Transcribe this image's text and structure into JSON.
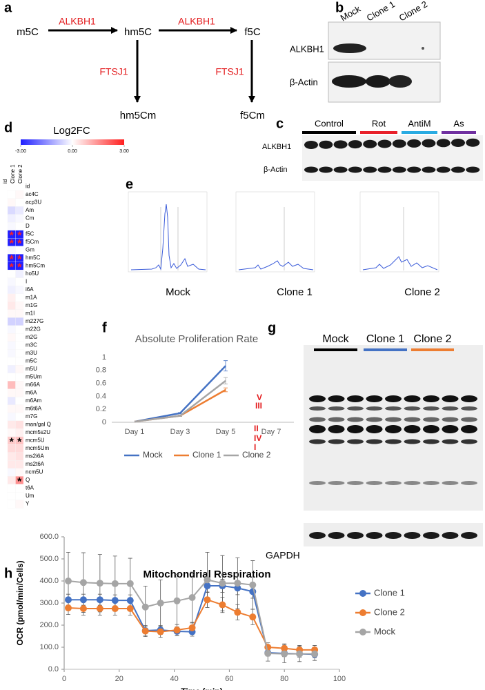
{
  "panel_labels": [
    "a",
    "b",
    "c",
    "d",
    "e",
    "f",
    "g",
    "h"
  ],
  "diagram": {
    "nodes": [
      "m5C",
      "hm5C",
      "f5C",
      "hm5Cm",
      "f5Cm"
    ],
    "edges": [
      "ALKBH1",
      "ALKBH1",
      "FTSJ1",
      "FTSJ1"
    ]
  },
  "blot_b": {
    "lanes": [
      "Mock",
      "Clone 1",
      "Clone 2"
    ],
    "rows": [
      "ALKBH1",
      "β-Actin"
    ]
  },
  "blot_c": {
    "groups": [
      {
        "name": "Control",
        "color": "#000000"
      },
      {
        "name": "Rot",
        "color": "#e8202a"
      },
      {
        "name": "AntiM",
        "color": "#29abe2"
      },
      {
        "name": "As",
        "color": "#7030a0"
      }
    ],
    "rows": [
      "ALKBH1",
      "β-Actin"
    ]
  },
  "chromatograms": {
    "labels": [
      "Mock",
      "Clone 1",
      "Clone 2"
    ]
  },
  "blot_g": {
    "groups": [
      {
        "name": "Mock",
        "color": "#000000"
      },
      {
        "name": "Clone 1",
        "color": "#4472c4"
      },
      {
        "name": "Clone 2",
        "color": "#ed7d31"
      }
    ],
    "bands": [
      "V",
      "III",
      "II",
      "IV",
      "I"
    ],
    "loading": "GAPDH"
  },
  "chart_data": [
    {
      "type": "heatmap",
      "title": "Log2FC",
      "id_header": "id",
      "categories": [
        "ac4C",
        "acp3U",
        "Am",
        "Cm",
        "D",
        "f5C",
        "f5Cm",
        "Gm",
        "hm5C",
        "hm5Cm",
        "ho5U",
        "I",
        "i6A",
        "m1A",
        "m1G",
        "m1I",
        "m227G",
        "m22G",
        "m2G",
        "m3C",
        "m3U",
        "m5C",
        "m5U",
        "m5Um",
        "m66A",
        "m6A",
        "m6Am",
        "m6t6A",
        "m7G",
        "man/gal Q",
        "mcm5s2U",
        "mcm5U",
        "mcm5Um",
        "ms2i6A",
        "ms2t6A",
        "ncm5U",
        "Q",
        "t6A",
        "Um",
        "Y"
      ],
      "series": [
        {
          "name": "Clone 1",
          "values": [
            0,
            0.1,
            -0.5,
            -0.2,
            -0.1,
            -3,
            -3,
            -0.1,
            -3,
            -3,
            0,
            -0.1,
            -0.2,
            0.2,
            0.3,
            0.1,
            -0.6,
            -0.1,
            0.1,
            -0.1,
            -0.1,
            0,
            -0.2,
            0,
            0.9,
            0.1,
            -0.3,
            0.1,
            -0.1,
            0.3,
            0.1,
            0.7,
            0.5,
            0.3,
            0.3,
            -0.1,
            0.3,
            0,
            0,
            0
          ],
          "annotations": [
            null,
            null,
            null,
            null,
            null,
            "*",
            "*",
            null,
            "*",
            "*",
            null,
            null,
            null,
            null,
            null,
            null,
            null,
            null,
            null,
            null,
            null,
            null,
            null,
            null,
            null,
            null,
            null,
            null,
            null,
            null,
            null,
            "*",
            null,
            null,
            null,
            null,
            null,
            null,
            null,
            null
          ]
        },
        {
          "name": "Clone 2",
          "values": [
            0.1,
            0,
            -0.3,
            -0.1,
            0,
            -3,
            -3,
            0,
            -3,
            -3,
            -0.2,
            0,
            -0.1,
            0,
            0.1,
            0.1,
            -0.6,
            0,
            0,
            0,
            0,
            0,
            0.1,
            0,
            0.1,
            0.1,
            0,
            0.1,
            0,
            0.4,
            0.2,
            0.8,
            0.5,
            0.4,
            0.3,
            0.1,
            1.5,
            0,
            0,
            0.1
          ],
          "annotations": [
            null,
            null,
            null,
            null,
            null,
            "*",
            "*",
            null,
            "*",
            "*",
            null,
            null,
            null,
            null,
            null,
            null,
            null,
            null,
            null,
            null,
            null,
            null,
            null,
            null,
            null,
            null,
            null,
            null,
            null,
            null,
            null,
            "*",
            null,
            null,
            null,
            null,
            "*",
            null,
            null,
            null
          ]
        }
      ],
      "colorbar": {
        "lim": [
          -3,
          3
        ],
        "ticks": [
          {
            "value": -3,
            "label": "-3.00"
          },
          {
            "value": 0,
            "label": "0.00"
          },
          {
            "value": 3,
            "label": "3.00"
          }
        ],
        "colors": [
          "#1f1fff",
          "#ffffff",
          "#ff1f1f"
        ]
      }
    },
    {
      "type": "line",
      "title": "Absolute Proliferation Rate",
      "categories": [
        "Day 1",
        "Day 3",
        "Day 5",
        "Day 7"
      ],
      "series": [
        {
          "name": "Mock",
          "color": "#4472c4",
          "values": [
            0.01,
            0.14,
            0.87,
            null
          ],
          "errors": [
            0,
            0.01,
            0.08,
            null
          ]
        },
        {
          "name": "Clone 1",
          "color": "#ed7d31",
          "values": [
            0.01,
            0.1,
            0.5,
            null
          ],
          "errors": [
            0,
            0.01,
            0.03,
            null
          ]
        },
        {
          "name": "Clone 2",
          "color": "#a5a5a5",
          "values": [
            0.01,
            0.1,
            0.64,
            null
          ],
          "errors": [
            0,
            0.01,
            0.05,
            null
          ]
        }
      ],
      "ylim": [
        0,
        1
      ],
      "yticks": [
        0,
        0.2,
        0.4,
        0.6,
        0.8,
        1
      ],
      "markers": false,
      "legend": "bottom"
    },
    {
      "type": "line",
      "title": "Mitochondrial Respiration",
      "x_label": "Time (min)",
      "y_label": "OCR (pmol/min/Cells)",
      "x": [
        1.5,
        7,
        13,
        18.5,
        24,
        29.5,
        35,
        41,
        46.5,
        52,
        57.5,
        63,
        68.5,
        74,
        80,
        85.5,
        91
      ],
      "series": [
        {
          "name": "Clone 1",
          "color": "#4472c4",
          "values": [
            315,
            315,
            315,
            312,
            312,
            175,
            178,
            172,
            170,
            378,
            378,
            368,
            352,
            75,
            72,
            70,
            68
          ],
          "errors": [
            25,
            25,
            25,
            25,
            25,
            20,
            20,
            20,
            20,
            30,
            30,
            30,
            30,
            15,
            15,
            15,
            15
          ]
        },
        {
          "name": "Clone 2",
          "color": "#ed7d31",
          "values": [
            278,
            275,
            275,
            275,
            275,
            173,
            170,
            178,
            188,
            315,
            292,
            258,
            237,
            100,
            95,
            88,
            88
          ],
          "errors": [
            30,
            30,
            30,
            30,
            30,
            25,
            25,
            25,
            25,
            35,
            35,
            35,
            35,
            20,
            20,
            20,
            20
          ]
        },
        {
          "name": "Mock",
          "color": "#a5a5a5",
          "values": [
            400,
            393,
            390,
            388,
            388,
            282,
            300,
            310,
            325,
            405,
            390,
            390,
            382,
            72,
            70,
            70,
            70
          ],
          "errors": [
            130,
            135,
            130,
            125,
            115,
            95,
            105,
            120,
            115,
            125,
            125,
            115,
            110,
            35,
            40,
            35,
            30
          ]
        }
      ],
      "xlim": [
        0,
        100
      ],
      "xticks": [
        0,
        20,
        40,
        60,
        80,
        100
      ],
      "ylim": [
        0,
        600
      ],
      "yticks": [
        {
          "value": 0,
          "label": "0.0"
        },
        {
          "value": 100,
          "label": "100.0"
        },
        {
          "value": 200,
          "label": "200.0"
        },
        {
          "value": 300,
          "label": "300.0"
        },
        {
          "value": 400,
          "label": "400.0"
        },
        {
          "value": 500,
          "label": "500.0"
        },
        {
          "value": 600,
          "label": "600.0"
        }
      ],
      "markers": true,
      "legend": "right"
    }
  ]
}
